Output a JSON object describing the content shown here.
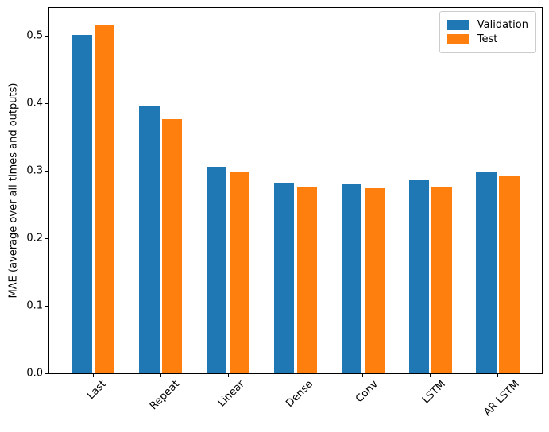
{
  "chart_data": {
    "type": "bar",
    "categories": [
      "Last",
      "Repeat",
      "Linear",
      "Dense",
      "Conv",
      "LSTM",
      "AR LSTM"
    ],
    "series": [
      {
        "name": "Validation",
        "color": "#1f77b4",
        "values": [
          0.501,
          0.396,
          0.306,
          0.281,
          0.28,
          0.286,
          0.298
        ]
      },
      {
        "name": "Test",
        "color": "#ff7f0e",
        "values": [
          0.516,
          0.377,
          0.299,
          0.277,
          0.274,
          0.277,
          0.292
        ]
      }
    ],
    "title": "",
    "xlabel": "",
    "ylabel": "MAE (average over all times and outputs)",
    "ylim": [
      0,
      0.5415
    ],
    "xlim": [
      -0.652,
      6.652
    ],
    "yticks": [
      0.0,
      0.1,
      0.2,
      0.3,
      0.4,
      0.5
    ],
    "grid": false,
    "legend_position": "upper right",
    "xtick_rotation": 45,
    "bar_width_units": 0.3,
    "bar_offset_units": 0.17,
    "spine_color": "#000000",
    "legend_border_color": "#cccccc"
  }
}
